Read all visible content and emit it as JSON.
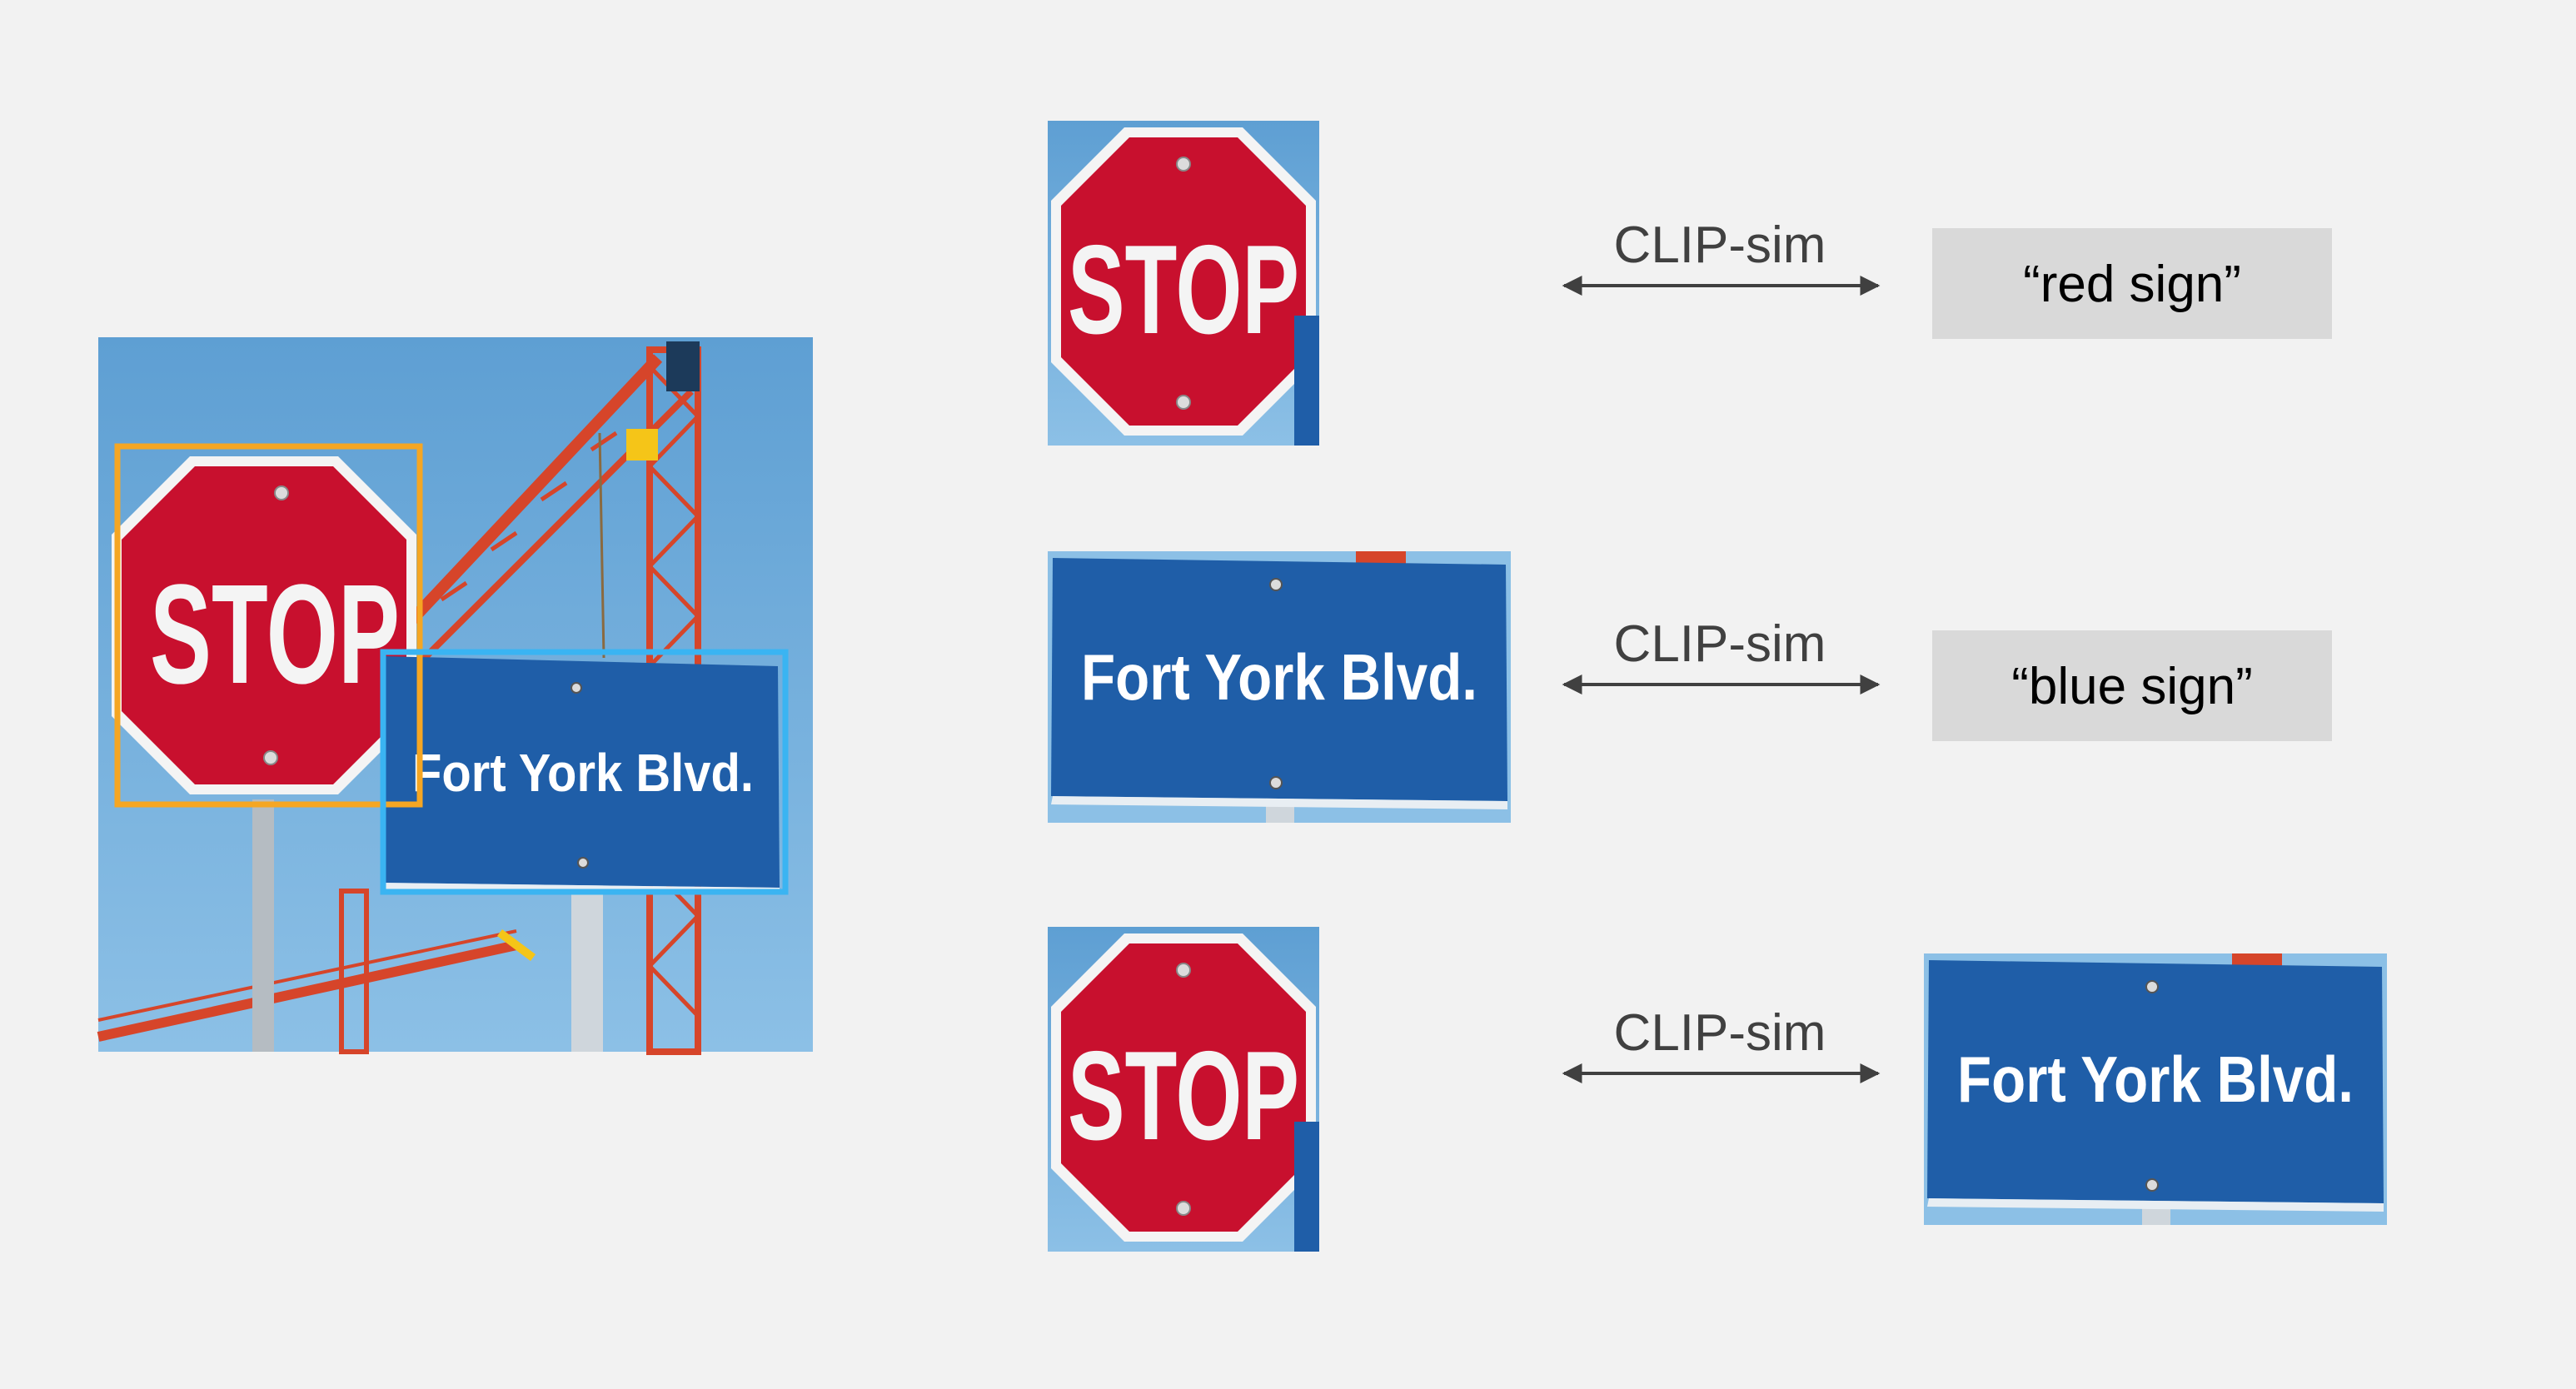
{
  "scene": {
    "stop_label": "STOP",
    "street_label": "Fort York Blvd."
  },
  "pairs": [
    {
      "similarity_label": "CLIP-sim",
      "text_query": "“red sign”"
    },
    {
      "similarity_label": "CLIP-sim",
      "text_query": "“blue sign”"
    },
    {
      "similarity_label": "CLIP-sim"
    }
  ],
  "colors": {
    "background": "#f2f2f2",
    "sky": "#6aa8d6",
    "stop_red": "#c8102e",
    "street_blue": "#1f5ea8",
    "crane_red": "#d6452a",
    "box_orange": "#f5a623",
    "box_cyan": "#3ab4f2",
    "query_box": "#d9d9d9",
    "arrow": "#404040"
  },
  "icons": [
    "stop-sign",
    "street-sign",
    "construction-crane",
    "double-arrow"
  ]
}
